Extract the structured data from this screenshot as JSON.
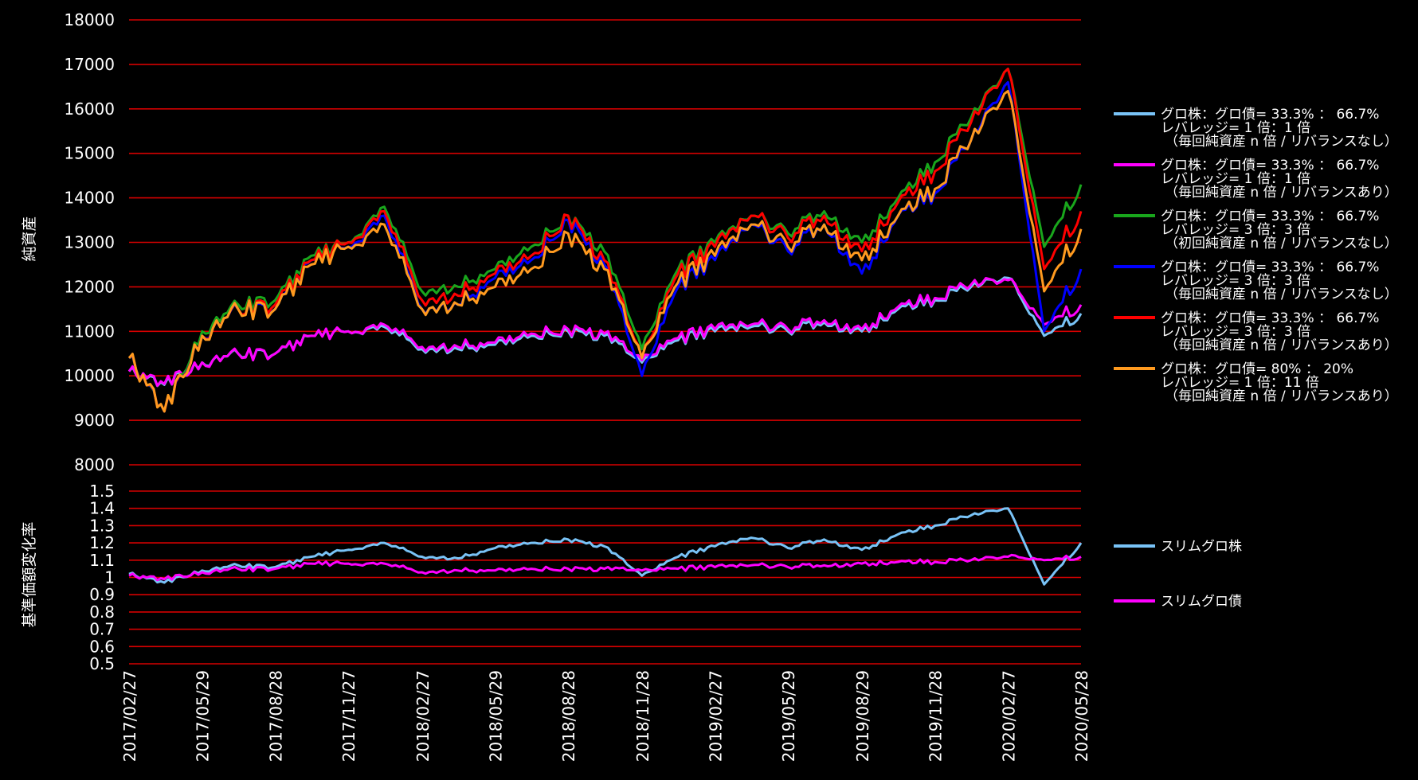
{
  "colors": {
    "background": "#000000",
    "grid": "#d40000",
    "text": "#ffffff"
  },
  "chart_data": [
    {
      "type": "line",
      "ylabel": "純資産",
      "ylim": [
        8000,
        18000
      ],
      "yticks": [
        8000,
        9000,
        10000,
        11000,
        12000,
        13000,
        14000,
        15000,
        16000,
        17000,
        18000
      ],
      "legend_position": "right",
      "x": [
        "2017/02/27",
        "2017/04/12",
        "2017/05/29",
        "2017/07/13",
        "2017/08/28",
        "2017/10/12",
        "2017/11/27",
        "2018/01/11",
        "2018/02/27",
        "2018/04/13",
        "2018/05/29",
        "2018/07/13",
        "2018/08/28",
        "2018/10/12",
        "2018/11/28",
        "2019/01/12",
        "2019/02/27",
        "2019/04/13",
        "2019/05/29",
        "2019/07/13",
        "2019/08/29",
        "2019/10/13",
        "2019/11/28",
        "2020/01/12",
        "2020/02/27",
        "2020/04/12",
        "2020/05/28"
      ],
      "series": [
        {
          "name": "グロ株：グロ債= 33.3% ： 66.7%|レバレッジ= 1 倍：1 倍|（毎回純資産 n 倍 / リバランスなし）",
          "color": "#79c3f7",
          "values": [
            10100,
            9800,
            10300,
            10500,
            10500,
            10900,
            11000,
            11100,
            10600,
            10600,
            10700,
            10900,
            11000,
            10900,
            10300,
            10800,
            11000,
            11100,
            11000,
            11200,
            11000,
            11500,
            11700,
            12000,
            12200,
            10900,
            11400
          ]
        },
        {
          "name": "グロ株：グロ債= 33.3% ： 66.7%|レバレッジ= 1 倍：1 倍|（毎回純資産 n 倍 / リバランスあり）",
          "color": "#ff00ff",
          "values": [
            10100,
            9820,
            10300,
            10500,
            10500,
            10900,
            11000,
            11150,
            10650,
            10650,
            10750,
            10950,
            11050,
            10950,
            10350,
            10850,
            11050,
            11150,
            11050,
            11250,
            11050,
            11550,
            11750,
            12050,
            12150,
            11150,
            11600
          ]
        },
        {
          "name": "グロ株：グロ債= 33.3% ： 66.7%|レバレッジ= 3 倍：3 倍|（初回純資産 n 倍 / リバランスなし）",
          "color": "#19a61c",
          "values": [
            10400,
            9200,
            11000,
            11600,
            11700,
            12700,
            13000,
            13800,
            11900,
            12000,
            12400,
            12900,
            13600,
            12800,
            10600,
            12400,
            13000,
            13600,
            13200,
            13700,
            13000,
            14000,
            14800,
            15800,
            16900,
            12900,
            14300
          ]
        },
        {
          "name": "グロ株：グロ債= 33.3% ： 66.7%|レバレッジ= 3 倍：3 倍|（毎回純資産 n 倍 / リバランスなし）",
          "color": "#0000ff",
          "values": [
            10400,
            9200,
            10900,
            11500,
            11500,
            12600,
            12900,
            13600,
            11500,
            11600,
            12200,
            12600,
            13500,
            12500,
            10000,
            12000,
            12600,
            13400,
            12800,
            13400,
            12300,
            13600,
            14100,
            15300,
            16600,
            11000,
            12400
          ]
        },
        {
          "name": "グロ株：グロ債= 33.3% ： 66.7%|レバレッジ= 3 倍：3 倍|（毎回純資産 n 倍 / リバランスあり）",
          "color": "#ff0000",
          "values": [
            10400,
            9200,
            10900,
            11500,
            11600,
            12600,
            13000,
            13700,
            11700,
            11800,
            12300,
            12700,
            13600,
            12600,
            10400,
            12300,
            12900,
            13600,
            13100,
            13600,
            12800,
            13900,
            14600,
            15700,
            16900,
            12400,
            13700
          ]
        },
        {
          "name": "グロ株：グロ債= 80% ： 20%|レバレッジ= 1 倍：11 倍|（毎回純資産 n 倍 / リバランスあり）",
          "color": "#ff9a1f",
          "values": [
            10400,
            9200,
            10900,
            11500,
            11500,
            12500,
            12900,
            13400,
            11500,
            11600,
            12000,
            12400,
            13200,
            12400,
            10400,
            12100,
            12700,
            13400,
            12900,
            13400,
            12600,
            13600,
            14200,
            15300,
            16400,
            11900,
            13300
          ]
        }
      ]
    },
    {
      "type": "line",
      "ylabel": "基準価額変化率",
      "ylim": [
        0.5,
        1.5
      ],
      "yticks": [
        0.5,
        0.6,
        0.7,
        0.8,
        0.9,
        1,
        1.1,
        1.2,
        1.3,
        1.4,
        1.5
      ],
      "legend_position": "right",
      "x": [
        "2017/02/27",
        "2017/04/12",
        "2017/05/29",
        "2017/07/13",
        "2017/08/28",
        "2017/10/12",
        "2017/11/27",
        "2018/01/11",
        "2018/02/27",
        "2018/04/13",
        "2018/05/29",
        "2018/07/13",
        "2018/08/28",
        "2018/10/12",
        "2018/11/28",
        "2019/01/12",
        "2019/02/27",
        "2019/04/13",
        "2019/05/29",
        "2019/07/13",
        "2019/08/29",
        "2019/10/13",
        "2019/11/28",
        "2020/01/12",
        "2020/02/27",
        "2020/04/12",
        "2020/05/28"
      ],
      "series": [
        {
          "name": "スリムグロ株",
          "color": "#79c3f7",
          "values": [
            1.02,
            0.97,
            1.04,
            1.07,
            1.06,
            1.12,
            1.16,
            1.2,
            1.12,
            1.11,
            1.17,
            1.2,
            1.22,
            1.18,
            1.01,
            1.12,
            1.18,
            1.23,
            1.17,
            1.22,
            1.16,
            1.25,
            1.3,
            1.36,
            1.4,
            0.96,
            1.2
          ]
        },
        {
          "name": "スリムグロ債",
          "color": "#ff00ff",
          "values": [
            1.01,
            0.99,
            1.03,
            1.05,
            1.05,
            1.08,
            1.08,
            1.08,
            1.03,
            1.04,
            1.04,
            1.05,
            1.05,
            1.05,
            1.04,
            1.05,
            1.06,
            1.07,
            1.06,
            1.07,
            1.08,
            1.09,
            1.09,
            1.1,
            1.12,
            1.1,
            1.12
          ]
        }
      ]
    }
  ],
  "xaxis": {
    "tick_labels": [
      "2017/02/27",
      "2017/05/29",
      "2017/08/28",
      "2017/11/27",
      "2018/02/27",
      "2018/05/29",
      "2018/08/28",
      "2018/11/28",
      "2019/02/27",
      "2019/05/29",
      "2019/08/29",
      "2019/11/28",
      "2020/02/27",
      "2020/05/28"
    ]
  }
}
